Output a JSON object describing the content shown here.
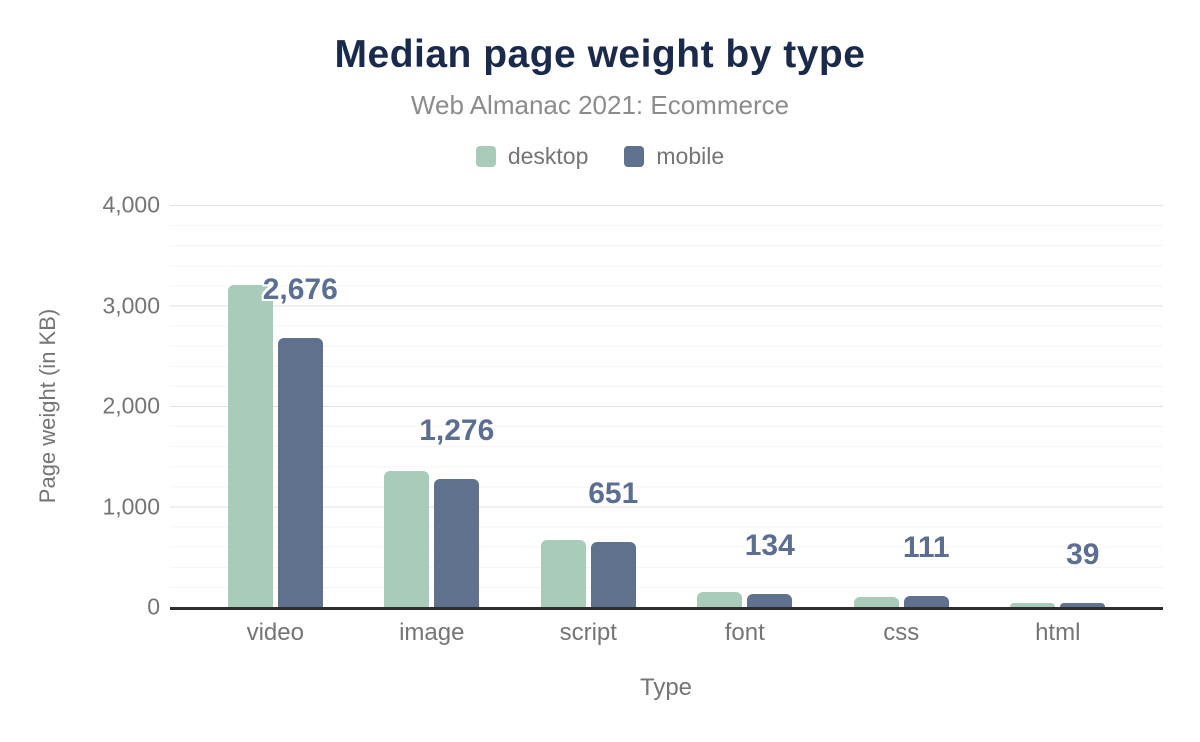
{
  "chart": {
    "title": "Median page weight by type",
    "subtitle": "Web Almanac 2021: Ecommerce"
  },
  "chart_data": {
    "type": "bar",
    "title": "Median page weight by type",
    "subtitle": "Web Almanac 2021: Ecommerce",
    "xlabel": "Type",
    "ylabel": "Page weight (in KB)",
    "categories": [
      "video",
      "image",
      "script",
      "font",
      "css",
      "html"
    ],
    "series": [
      {
        "name": "desktop",
        "color": "#a9cbba",
        "values": [
          3200,
          1355,
          670,
          150,
          100,
          42
        ]
      },
      {
        "name": "mobile",
        "color": "#5f718d",
        "values": [
          2676,
          1276,
          651,
          134,
          111,
          39
        ]
      }
    ],
    "data_labels": [
      "2,676",
      "1,276",
      "651",
      "134",
      "111",
      "39"
    ],
    "data_labels_series": "mobile",
    "y_ticks": [
      {
        "value": 0,
        "label": "0"
      },
      {
        "value": 1000,
        "label": "1,000"
      },
      {
        "value": 2000,
        "label": "2,000"
      },
      {
        "value": 3000,
        "label": "3,000"
      },
      {
        "value": 4000,
        "label": "4,000"
      }
    ],
    "ylim": [
      0,
      4000
    ],
    "y_major_step": 1000,
    "y_minor_step": 200,
    "grid": true,
    "legend_position": "top",
    "colors": {
      "title": "#1b2a4a",
      "subtitle": "#8c8c8c",
      "axis_text": "#757575",
      "axis_line": "#2e2e2e",
      "grid_major": "#e2e2e2",
      "grid_minor": "#f5f5f5",
      "data_label": "#5c6e91"
    }
  }
}
